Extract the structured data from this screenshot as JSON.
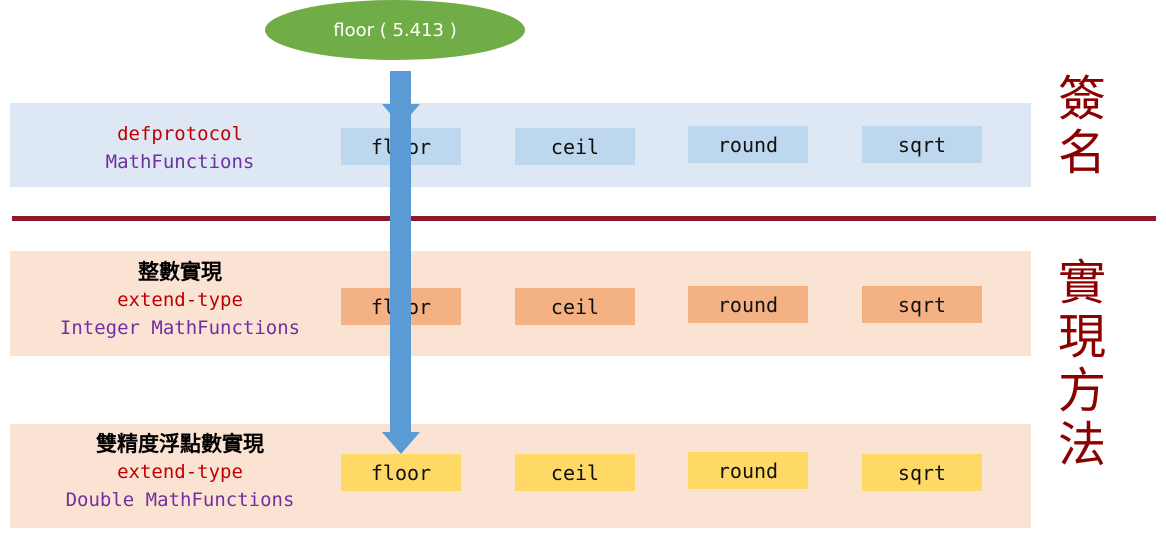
{
  "call": {
    "label": "floor ( 5.413 )"
  },
  "signature": {
    "keyword": "defprotocol",
    "name": "MathFunctions",
    "functions": [
      "floor",
      "ceil",
      "round",
      "sqrt"
    ],
    "side_label": [
      "簽",
      "名"
    ]
  },
  "integer_impl": {
    "title": "整數實現",
    "keyword": "extend-type",
    "name": "Integer MathFunctions",
    "functions": [
      "floor",
      "ceil",
      "round",
      "sqrt"
    ]
  },
  "double_impl": {
    "title": "雙精度浮點數實現",
    "keyword": "extend-type",
    "name": "Double MathFunctions",
    "functions": [
      "floor",
      "ceil",
      "round",
      "sqrt"
    ]
  },
  "implementation_side_label": [
    "實",
    "現",
    "方",
    "法"
  ],
  "colors": {
    "signature_band": "#dde8f4",
    "impl_band": "#fbe3d3",
    "signature_box": "#bdd7ee",
    "integer_box": "#f4b183",
    "double_box": "#ffd966",
    "arrow": "#5b9bd5",
    "divider": "#8c1a2a",
    "call_ellipse": "#70ad47"
  }
}
